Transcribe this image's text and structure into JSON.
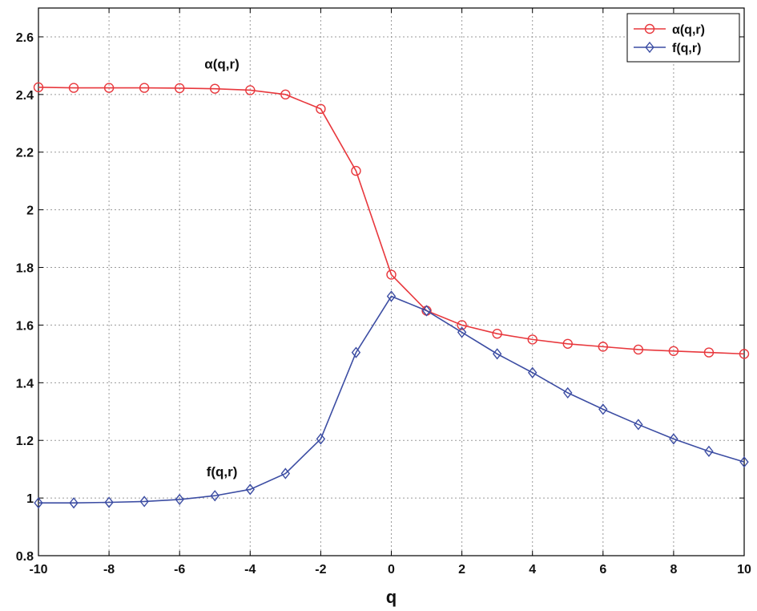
{
  "chart_data": {
    "type": "line",
    "xlabel": "q",
    "ylabel": "",
    "xlim": [
      -10,
      10
    ],
    "ylim": [
      0.8,
      2.7
    ],
    "xticks": [
      -10,
      -8,
      -6,
      -4,
      -2,
      0,
      2,
      4,
      6,
      8,
      10
    ],
    "yticks": [
      0.8,
      1,
      1.2,
      1.4,
      1.6,
      1.8,
      2,
      2.2,
      2.4,
      2.6
    ],
    "xtick_labels": [
      "-10",
      "-8",
      "-6",
      "-4",
      "-2",
      "0",
      "2",
      "4",
      "6",
      "8",
      "10"
    ],
    "ytick_labels": [
      "0.8",
      "1",
      "1.2",
      "1.4",
      "1.6",
      "1.8",
      "2",
      "2.2",
      "2.4",
      "2.6"
    ],
    "grid": true,
    "legend_position": "top-right",
    "x": [
      -10,
      -9,
      -8,
      -7,
      -6,
      -5,
      -4,
      -3,
      -2,
      -1,
      0,
      1,
      2,
      3,
      4,
      5,
      6,
      7,
      8,
      9,
      10
    ],
    "series": [
      {
        "name": "α(q,r)",
        "color": "#e8383d",
        "marker": "circle",
        "values": [
          2.425,
          2.423,
          2.423,
          2.423,
          2.422,
          2.42,
          2.415,
          2.4,
          2.35,
          2.135,
          1.775,
          1.65,
          1.6,
          1.57,
          1.55,
          1.535,
          1.525,
          1.515,
          1.51,
          1.505,
          1.5
        ]
      },
      {
        "name": "f(q,r)",
        "color": "#3c4da3",
        "marker": "diamond",
        "values": [
          0.983,
          0.983,
          0.985,
          0.988,
          0.995,
          1.008,
          1.03,
          1.085,
          1.205,
          1.505,
          1.7,
          1.65,
          1.575,
          1.5,
          1.435,
          1.365,
          1.308,
          1.255,
          1.205,
          1.162,
          1.125
        ]
      }
    ],
    "annotations": [
      {
        "text": "α(q,r)",
        "x": -4.8,
        "y": 2.49
      },
      {
        "text": "f(q,r)",
        "x": -4.8,
        "y": 1.075
      }
    ]
  }
}
